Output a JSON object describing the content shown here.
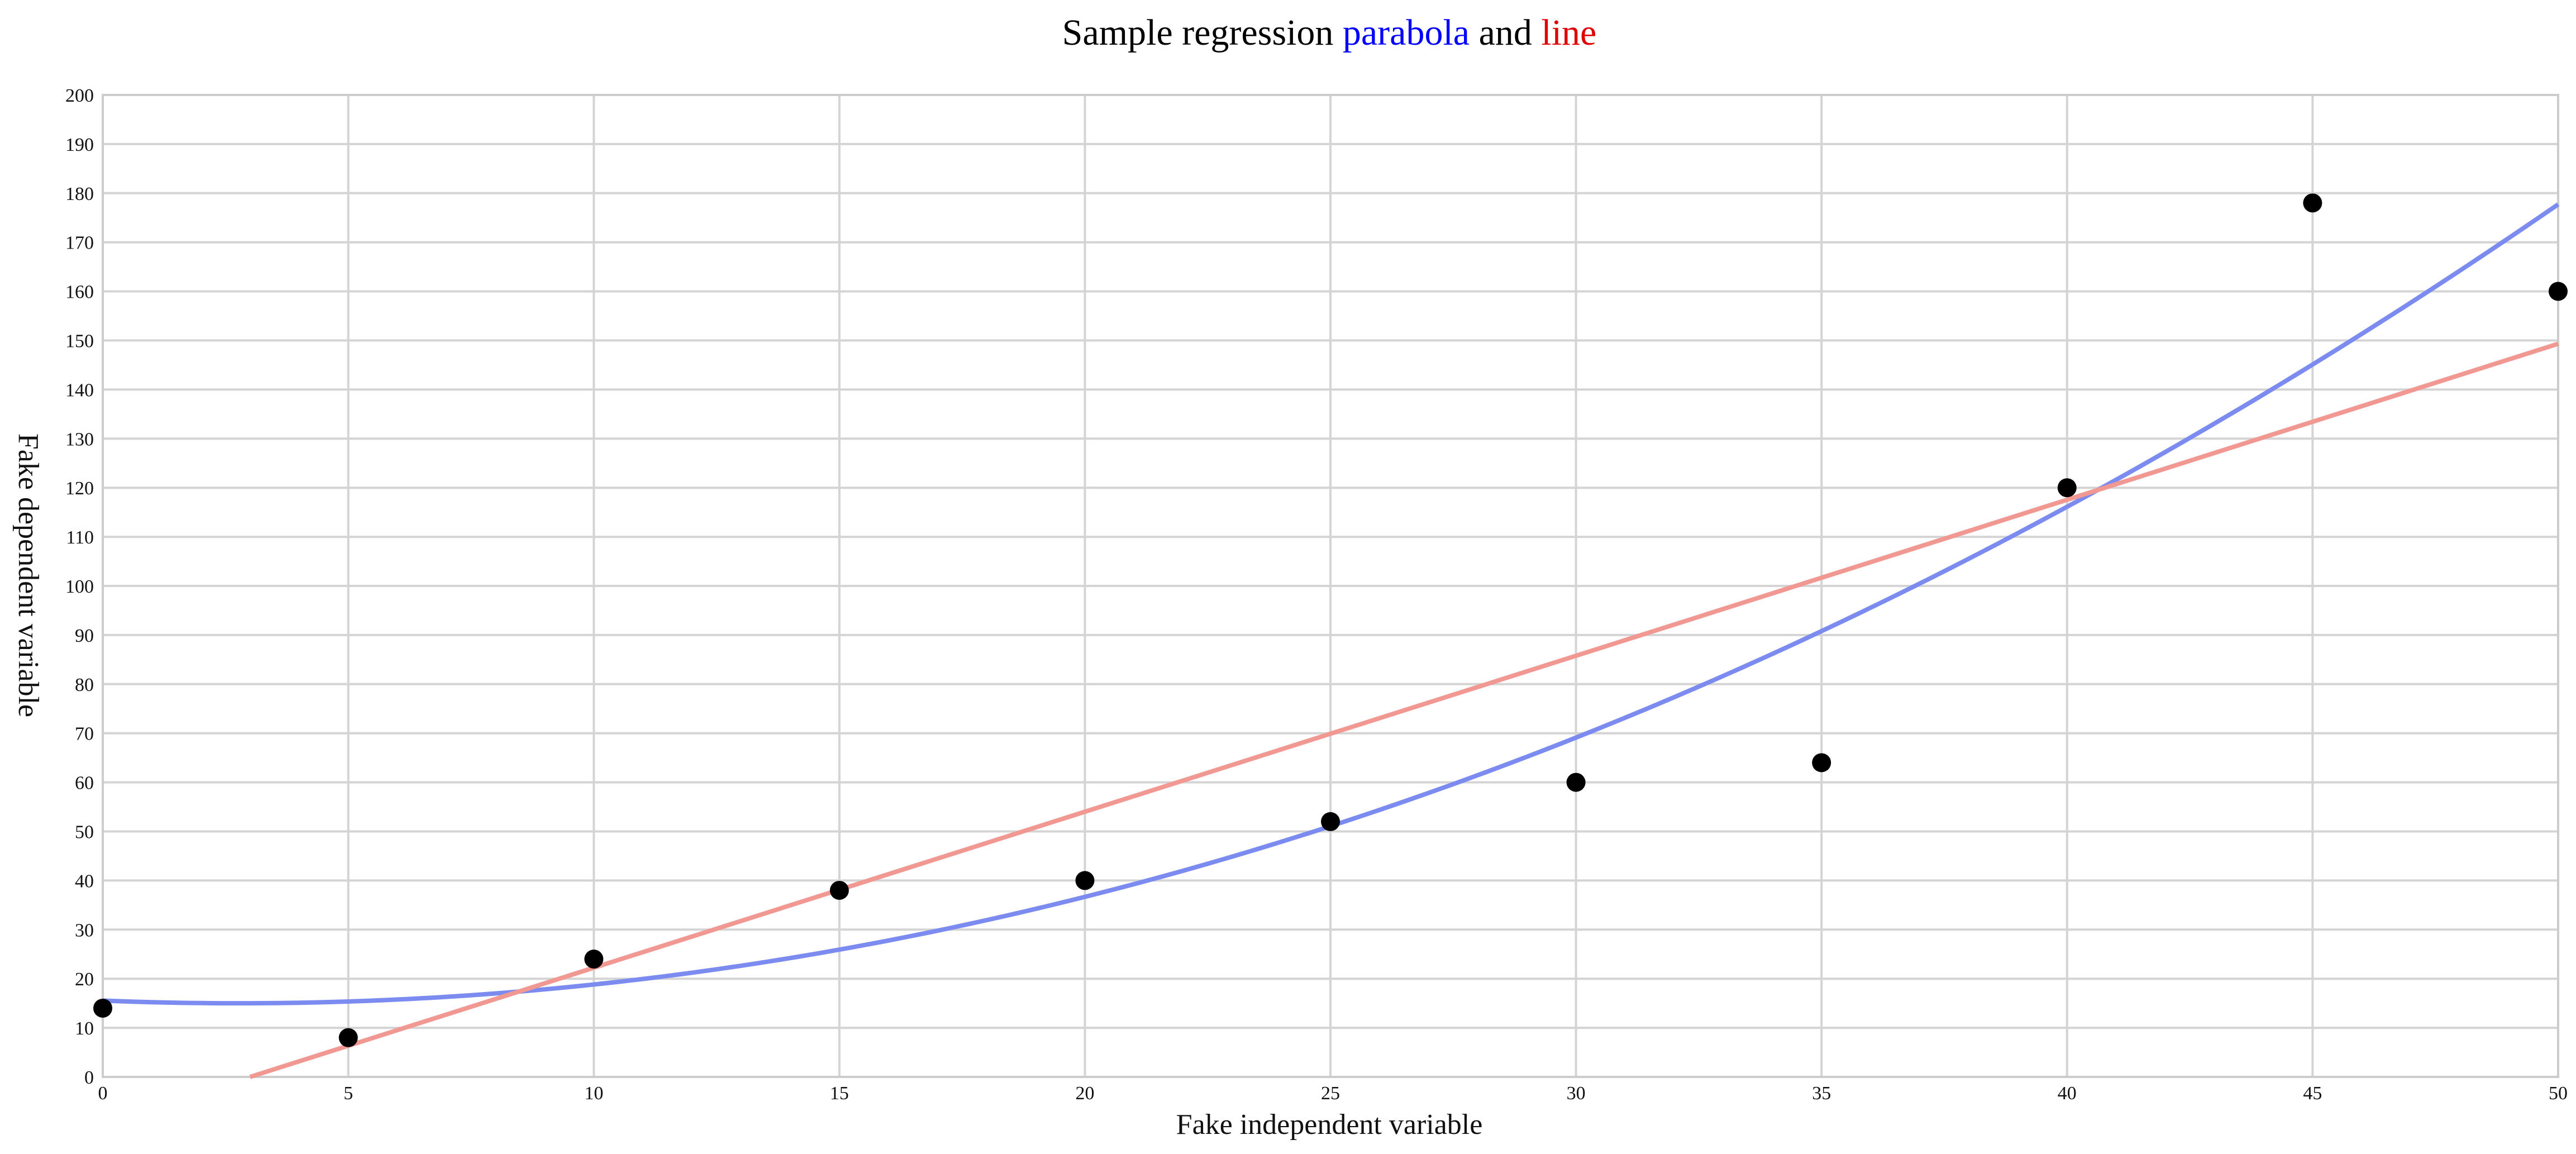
{
  "chart_data": {
    "type": "scatter",
    "title_parts": [
      {
        "text": "Sample regression ",
        "color": "#000000"
      },
      {
        "text": "parabola",
        "color": "#0000ff"
      },
      {
        "text": " and ",
        "color": "#000000"
      },
      {
        "text": "line",
        "color": "#e00000"
      }
    ],
    "xlabel": "Fake independent variable",
    "ylabel": "Fake dependent variable",
    "xlim": [
      0,
      50
    ],
    "ylim": [
      0,
      200
    ],
    "x_ticks": [
      0,
      5,
      10,
      15,
      20,
      25,
      30,
      35,
      40,
      45,
      50
    ],
    "y_ticks": [
      0,
      10,
      20,
      30,
      40,
      50,
      60,
      70,
      80,
      90,
      100,
      110,
      120,
      130,
      140,
      150,
      160,
      170,
      180,
      190,
      200
    ],
    "grid": true,
    "points": [
      {
        "x": 0,
        "y": 14
      },
      {
        "x": 5,
        "y": 8
      },
      {
        "x": 10,
        "y": 24
      },
      {
        "x": 15,
        "y": 38
      },
      {
        "x": 20,
        "y": 40
      },
      {
        "x": 25,
        "y": 52
      },
      {
        "x": 30,
        "y": 60
      },
      {
        "x": 35,
        "y": 64
      },
      {
        "x": 40,
        "y": 120
      },
      {
        "x": 45,
        "y": 178
      },
      {
        "x": 50,
        "y": 160
      }
    ],
    "fits": {
      "parabola": {
        "a": 0.0729,
        "b": -0.4017,
        "c": 15.55,
        "color": "#7b8bef"
      },
      "line": {
        "slope": 3.177,
        "intercept": -9.53,
        "color": "#f29893"
      }
    },
    "colors": {
      "grid": "#d4d4d4",
      "axis": "#cccccc",
      "points": "#000000"
    }
  }
}
